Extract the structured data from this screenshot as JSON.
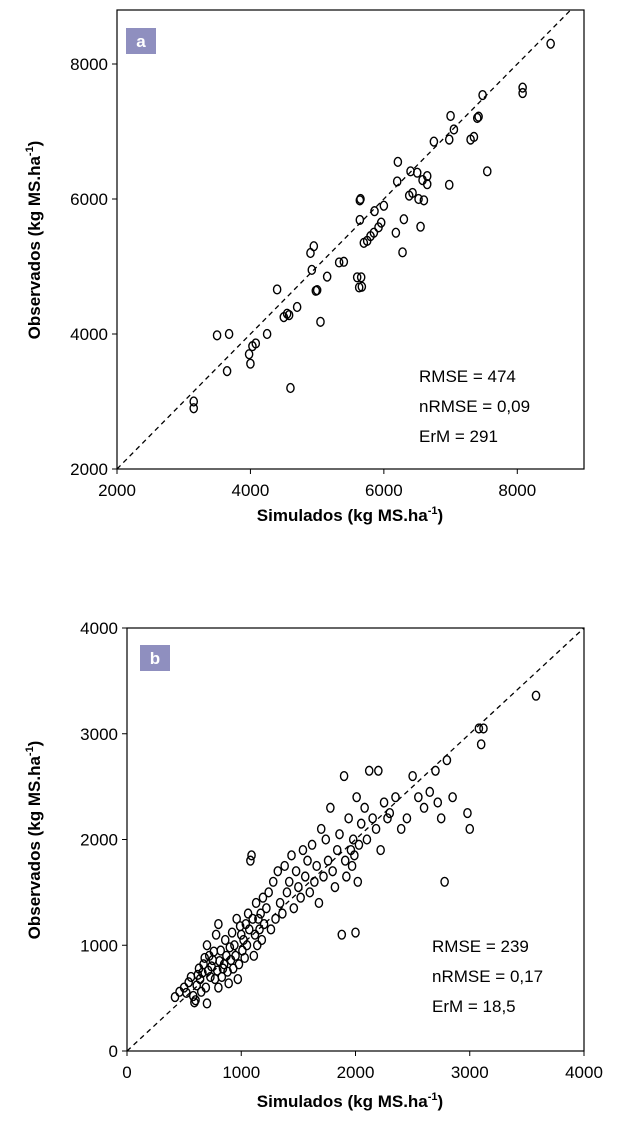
{
  "chart_data": [
    {
      "type": "scatter",
      "panel_label": "a",
      "xlabel": "Simulados (kg MS.ha",
      "ylabel": "Observados (kg MS.ha",
      "label_unit_superscript": "-1",
      "label_suffix": ")",
      "xlim": [
        2000,
        9000
      ],
      "ylim": [
        2000,
        8800
      ],
      "xticks": [
        2000,
        4000,
        6000,
        8000
      ],
      "yticks": [
        2000,
        4000,
        6000,
        8000
      ],
      "stats": [
        "RMSE = 474",
        "nRMSE = 0,09",
        "ErM = 291"
      ],
      "reference_line": "1:1",
      "colors": {
        "panel_tag": "#8f8fbf",
        "marker": "#000000"
      },
      "points": [
        [
          3150,
          3000
        ],
        [
          3150,
          2900
        ],
        [
          3500,
          3980
        ],
        [
          3650,
          3450
        ],
        [
          3680,
          4000
        ],
        [
          3980,
          3700
        ],
        [
          4000,
          3560
        ],
        [
          4030,
          3820
        ],
        [
          4080,
          3860
        ],
        [
          4250,
          4000
        ],
        [
          4400,
          4660
        ],
        [
          4500,
          4250
        ],
        [
          4550,
          4300
        ],
        [
          4580,
          4280
        ],
        [
          4600,
          3200
        ],
        [
          4700,
          4400
        ],
        [
          4900,
          5200
        ],
        [
          4920,
          4950
        ],
        [
          4950,
          5300
        ],
        [
          4980,
          4640
        ],
        [
          5000,
          4650
        ],
        [
          5050,
          4180
        ],
        [
          5150,
          4850
        ],
        [
          5330,
          5060
        ],
        [
          5400,
          5070
        ],
        [
          5600,
          4840
        ],
        [
          5630,
          4690
        ],
        [
          5640,
          5690
        ],
        [
          5640,
          5980
        ],
        [
          5650,
          6000
        ],
        [
          5660,
          4840
        ],
        [
          5670,
          4700
        ],
        [
          5700,
          5350
        ],
        [
          5750,
          5380
        ],
        [
          5800,
          5450
        ],
        [
          5850,
          5500
        ],
        [
          5860,
          5820
        ],
        [
          5920,
          5580
        ],
        [
          5960,
          5650
        ],
        [
          6000,
          5900
        ],
        [
          6180,
          5500
        ],
        [
          6200,
          6260
        ],
        [
          6210,
          6550
        ],
        [
          6280,
          5210
        ],
        [
          6300,
          5700
        ],
        [
          6380,
          6050
        ],
        [
          6400,
          6410
        ],
        [
          6430,
          6090
        ],
        [
          6500,
          6390
        ],
        [
          6520,
          6000
        ],
        [
          6550,
          5590
        ],
        [
          6580,
          6280
        ],
        [
          6600,
          5980
        ],
        [
          6650,
          6220
        ],
        [
          6650,
          6340
        ],
        [
          6750,
          6850
        ],
        [
          6980,
          6210
        ],
        [
          6980,
          6880
        ],
        [
          7000,
          7230
        ],
        [
          7050,
          7030
        ],
        [
          7300,
          6880
        ],
        [
          7350,
          6920
        ],
        [
          7400,
          7200
        ],
        [
          7420,
          7220
        ],
        [
          7480,
          7540
        ],
        [
          7550,
          6410
        ],
        [
          8080,
          7650
        ],
        [
          8080,
          7570
        ],
        [
          8500,
          8300
        ]
      ]
    },
    {
      "type": "scatter",
      "panel_label": "b",
      "xlabel": "Simulados (kg MS.ha",
      "ylabel": "Observados (kg MS.ha",
      "label_unit_superscript": "-1",
      "label_suffix": ")",
      "xlim": [
        0,
        4000
      ],
      "ylim": [
        0,
        4000
      ],
      "xticks": [
        0,
        1000,
        2000,
        3000,
        4000
      ],
      "yticks": [
        0,
        1000,
        2000,
        3000,
        4000
      ],
      "stats": [
        "RMSE = 239",
        "nRMSE = 0,17",
        "ErM = 18,5"
      ],
      "reference_line": "1:1",
      "colors": {
        "panel_tag": "#8f8fbf",
        "marker": "#000000"
      },
      "points": [
        [
          420,
          510
        ],
        [
          460,
          560
        ],
        [
          500,
          600
        ],
        [
          520,
          550
        ],
        [
          540,
          650
        ],
        [
          560,
          700
        ],
        [
          580,
          520
        ],
        [
          590,
          460
        ],
        [
          600,
          480
        ],
        [
          610,
          620
        ],
        [
          620,
          720
        ],
        [
          630,
          780
        ],
        [
          640,
          680
        ],
        [
          650,
          560
        ],
        [
          660,
          740
        ],
        [
          670,
          820
        ],
        [
          680,
          880
        ],
        [
          690,
          600
        ],
        [
          700,
          1000
        ],
        [
          700,
          450
        ],
        [
          710,
          760
        ],
        [
          720,
          900
        ],
        [
          730,
          700
        ],
        [
          740,
          800
        ],
        [
          750,
          860
        ],
        [
          760,
          940
        ],
        [
          770,
          680
        ],
        [
          780,
          1100
        ],
        [
          790,
          760
        ],
        [
          800,
          1200
        ],
        [
          800,
          600
        ],
        [
          810,
          850
        ],
        [
          820,
          950
        ],
        [
          830,
          700
        ],
        [
          840,
          780
        ],
        [
          850,
          820
        ],
        [
          860,
          1050
        ],
        [
          870,
          900
        ],
        [
          880,
          750
        ],
        [
          890,
          640
        ],
        [
          900,
          980
        ],
        [
          910,
          860
        ],
        [
          920,
          1120
        ],
        [
          930,
          780
        ],
        [
          940,
          1000
        ],
        [
          950,
          900
        ],
        [
          960,
          1250
        ],
        [
          970,
          680
        ],
        [
          980,
          820
        ],
        [
          990,
          1180
        ],
        [
          1000,
          1100
        ],
        [
          1010,
          950
        ],
        [
          1020,
          1050
        ],
        [
          1030,
          880
        ],
        [
          1040,
          1200
        ],
        [
          1050,
          1000
        ],
        [
          1060,
          1300
        ],
        [
          1070,
          1150
        ],
        [
          1080,
          1800
        ],
        [
          1090,
          1850
        ],
        [
          1100,
          1250
        ],
        [
          1110,
          900
        ],
        [
          1120,
          1100
        ],
        [
          1130,
          1400
        ],
        [
          1140,
          1000
        ],
        [
          1150,
          1250
        ],
        [
          1160,
          1150
        ],
        [
          1170,
          1300
        ],
        [
          1180,
          1050
        ],
        [
          1190,
          1450
        ],
        [
          1200,
          1200
        ],
        [
          1220,
          1350
        ],
        [
          1240,
          1500
        ],
        [
          1260,
          1150
        ],
        [
          1280,
          1600
        ],
        [
          1300,
          1250
        ],
        [
          1320,
          1700
        ],
        [
          1340,
          1400
        ],
        [
          1360,
          1300
        ],
        [
          1380,
          1750
        ],
        [
          1400,
          1500
        ],
        [
          1420,
          1600
        ],
        [
          1440,
          1850
        ],
        [
          1460,
          1350
        ],
        [
          1480,
          1700
        ],
        [
          1500,
          1550
        ],
        [
          1520,
          1450
        ],
        [
          1540,
          1900
        ],
        [
          1560,
          1650
        ],
        [
          1580,
          1800
        ],
        [
          1600,
          1500
        ],
        [
          1620,
          1950
        ],
        [
          1640,
          1600
        ],
        [
          1660,
          1750
        ],
        [
          1680,
          1400
        ],
        [
          1700,
          2100
        ],
        [
          1720,
          1650
        ],
        [
          1740,
          2000
        ],
        [
          1760,
          1800
        ],
        [
          1780,
          2300
        ],
        [
          1800,
          1700
        ],
        [
          1820,
          1550
        ],
        [
          1840,
          1900
        ],
        [
          1860,
          2050
        ],
        [
          1880,
          1100
        ],
        [
          1900,
          2600
        ],
        [
          1910,
          1800
        ],
        [
          1920,
          1650
        ],
        [
          1940,
          2200
        ],
        [
          1960,
          1900
        ],
        [
          1970,
          1750
        ],
        [
          1980,
          2000
        ],
        [
          1990,
          1850
        ],
        [
          2000,
          1120
        ],
        [
          2010,
          2400
        ],
        [
          2020,
          1600
        ],
        [
          2030,
          1950
        ],
        [
          2050,
          2150
        ],
        [
          2080,
          2300
        ],
        [
          2100,
          2000
        ],
        [
          2120,
          2650
        ],
        [
          2150,
          2200
        ],
        [
          2180,
          2100
        ],
        [
          2200,
          2650
        ],
        [
          2220,
          1900
        ],
        [
          2250,
          2350
        ],
        [
          2280,
          2200
        ],
        [
          2300,
          2250
        ],
        [
          2350,
          2400
        ],
        [
          2400,
          2100
        ],
        [
          2450,
          2200
        ],
        [
          2500,
          2600
        ],
        [
          2550,
          2400
        ],
        [
          2600,
          2300
        ],
        [
          2650,
          2450
        ],
        [
          2700,
          2650
        ],
        [
          2720,
          2350
        ],
        [
          2750,
          2200
        ],
        [
          2780,
          1600
        ],
        [
          2800,
          2750
        ],
        [
          2850,
          2400
        ],
        [
          2980,
          2250
        ],
        [
          3000,
          2100
        ],
        [
          3080,
          3050
        ],
        [
          3100,
          2900
        ],
        [
          3120,
          3050
        ],
        [
          3580,
          3360
        ]
      ]
    }
  ]
}
